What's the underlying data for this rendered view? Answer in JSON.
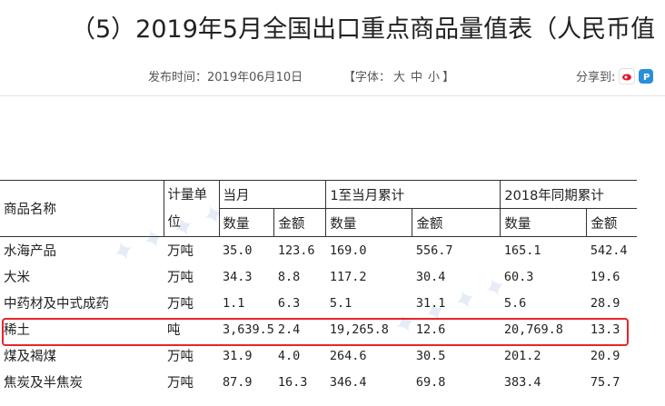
{
  "title": "（5）2019年5月全国出口重点商品量值表（人民币值",
  "publish": {
    "label": "发布时间：",
    "date": "2019年06月10日"
  },
  "font_size": {
    "open": "【字体：",
    "large": "大",
    "medium": "中",
    "small": "小",
    "close": "】"
  },
  "share": {
    "label": "分享到:",
    "icons": [
      "weibo-icon",
      "p-icon"
    ]
  },
  "table": {
    "header_name": "商品名称",
    "header_unit": "计量单位",
    "groups": [
      "当月",
      "1至当月累计",
      "2018年同期累计"
    ],
    "sub": [
      "数量",
      "金额",
      "数量",
      "金额",
      "数量",
      "金额"
    ],
    "rows": [
      [
        "水海产品",
        "万吨",
        "35.0",
        "123.6",
        "169.0",
        "556.7",
        "165.1",
        "542.4"
      ],
      [
        "大米",
        "万吨",
        "34.3",
        "8.8",
        "117.2",
        "30.4",
        "60.3",
        "19.6"
      ],
      [
        "中药材及中式成药",
        "万吨",
        "1.1",
        "6.3",
        "5.1",
        "31.1",
        "5.6",
        "28.9"
      ],
      [
        "稀土",
        "吨",
        "3,639.5",
        "2.4",
        "19,265.8",
        "12.6",
        "20,769.8",
        "13.3"
      ],
      [
        "煤及褐煤",
        "万吨",
        "31.9",
        "4.0",
        "264.6",
        "30.5",
        "201.2",
        "20.9"
      ],
      [
        "焦炭及半焦炭",
        "万吨",
        "87.9",
        "16.3",
        "346.4",
        "69.8",
        "383.4",
        "75.7"
      ]
    ],
    "highlighted_row": 3
  },
  "colors": {
    "highlight": "#e8252a",
    "rule": "#333333"
  }
}
